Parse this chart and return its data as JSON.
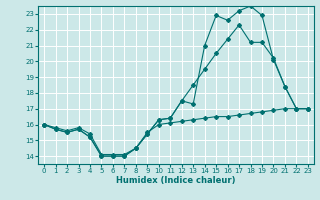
{
  "background_color": "#cce8e8",
  "grid_color": "#ffffff",
  "line_color": "#007070",
  "xlabel": "Humidex (Indice chaleur)",
  "xlim": [
    -0.5,
    23.5
  ],
  "ylim": [
    13.5,
    23.5
  ],
  "yticks": [
    14,
    15,
    16,
    17,
    18,
    19,
    20,
    21,
    22,
    23
  ],
  "xticks": [
    0,
    1,
    2,
    3,
    4,
    5,
    6,
    7,
    8,
    9,
    10,
    11,
    12,
    13,
    14,
    15,
    16,
    17,
    18,
    19,
    20,
    21,
    22,
    23
  ],
  "line1_x": [
    0,
    1,
    2,
    3,
    4,
    5,
    6,
    7,
    8,
    9,
    10,
    11,
    12,
    13,
    14,
    15,
    16,
    17,
    18,
    19,
    20,
    21,
    22,
    23
  ],
  "line1_y": [
    16.0,
    15.7,
    15.5,
    15.7,
    15.2,
    14.0,
    14.0,
    14.0,
    14.5,
    15.4,
    16.3,
    16.4,
    17.5,
    17.3,
    21.0,
    22.9,
    22.6,
    23.2,
    23.5,
    22.9,
    20.1,
    18.4,
    17.0,
    17.0
  ],
  "line2_x": [
    0,
    1,
    2,
    3,
    4,
    5,
    6,
    7,
    8,
    9,
    10,
    11,
    12,
    13,
    14,
    15,
    16,
    17,
    18,
    19,
    20,
    21,
    22,
    23
  ],
  "line2_y": [
    16.0,
    15.7,
    15.5,
    15.7,
    15.2,
    14.0,
    14.0,
    14.0,
    14.5,
    15.4,
    16.3,
    16.4,
    17.5,
    18.5,
    19.5,
    20.5,
    21.4,
    22.3,
    21.2,
    21.2,
    20.2,
    18.4,
    17.0,
    17.0
  ],
  "line3_x": [
    0,
    1,
    2,
    3,
    4,
    5,
    6,
    7,
    8,
    9,
    10,
    11,
    12,
    13,
    14,
    15,
    16,
    17,
    18,
    19,
    20,
    21,
    22,
    23
  ],
  "line3_y": [
    16.0,
    15.8,
    15.6,
    15.8,
    15.4,
    14.1,
    14.1,
    14.1,
    14.5,
    15.5,
    16.0,
    16.1,
    16.2,
    16.3,
    16.4,
    16.5,
    16.5,
    16.6,
    16.7,
    16.8,
    16.9,
    17.0,
    17.0,
    17.0
  ]
}
